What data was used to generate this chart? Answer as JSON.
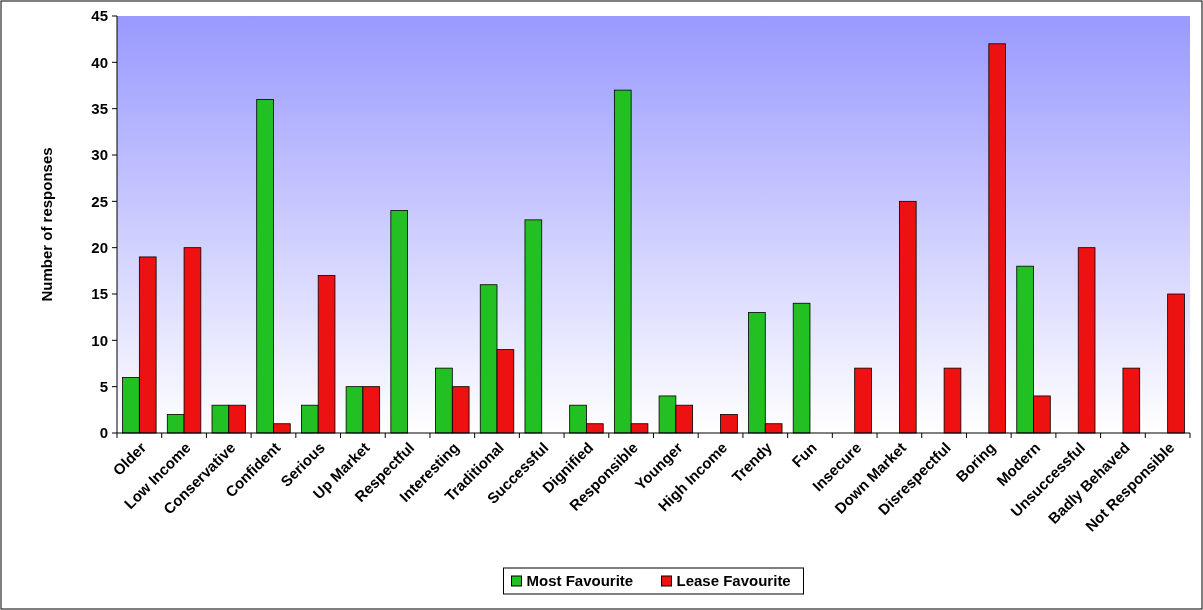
{
  "chart_data": {
    "type": "bar",
    "ylabel": "Number of responses",
    "categories": [
      "Older",
      "Low Income",
      "Conservative",
      "Confident",
      "Serious",
      "Up Market",
      "Respectful",
      "Interesting",
      "Traditional",
      "Successful",
      "Dignified",
      "Responsible",
      "Younger",
      "High Income",
      "Trendy",
      "Fun",
      "Insecure",
      "Down Market",
      "Disrespectful",
      "Boring",
      "Modern",
      "Unsuccessful",
      "Badly Behaved",
      "Not Responsible"
    ],
    "series": [
      {
        "name": "Most Favourite",
        "color": "#22c022",
        "values": [
          6,
          2,
          3,
          36,
          3,
          5,
          24,
          7,
          16,
          23,
          3,
          37,
          4,
          0,
          13,
          14,
          0,
          0,
          0,
          0,
          18,
          0,
          0,
          0
        ]
      },
      {
        "name": "Lease Favourite",
        "color": "#ee1111",
        "values": [
          19,
          20,
          3,
          1,
          17,
          5,
          0,
          5,
          9,
          0,
          1,
          1,
          3,
          2,
          1,
          0,
          7,
          25,
          7,
          42,
          4,
          20,
          7,
          15
        ]
      }
    ],
    "ylim": [
      0,
      45
    ],
    "yticks": [
      0,
      5,
      10,
      15,
      20,
      25,
      30,
      35,
      40,
      45
    ],
    "legend": "bottom",
    "grid": false
  }
}
